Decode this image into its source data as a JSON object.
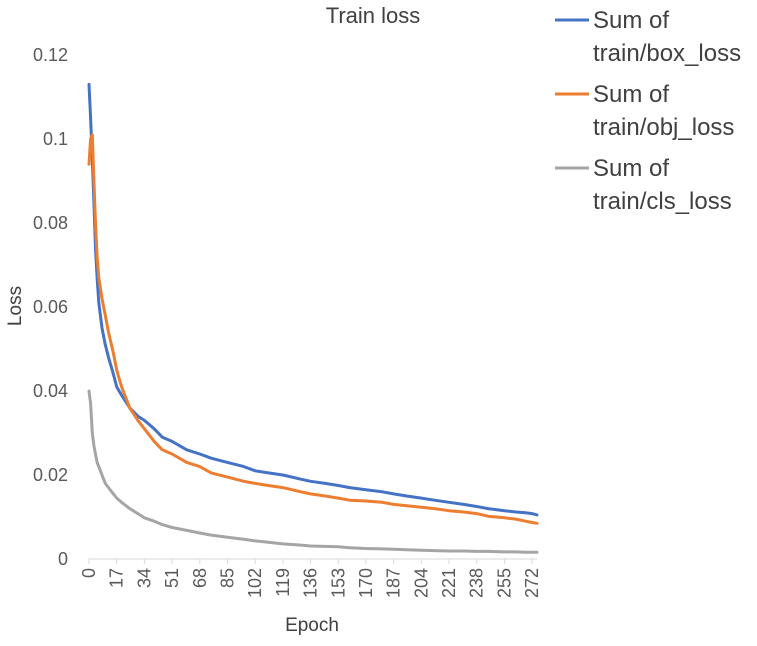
{
  "chart_data": {
    "type": "line",
    "title": "Train loss",
    "xlabel": "Epoch",
    "ylabel": "Loss",
    "ylim": [
      0,
      0.12
    ],
    "y_ticks": [
      "0",
      "0.02",
      "0.04",
      "0.06",
      "0.08",
      "0.1",
      "0.12"
    ],
    "x_range": [
      0,
      275
    ],
    "x_ticks": [
      0,
      17,
      34,
      51,
      68,
      85,
      102,
      119,
      136,
      153,
      170,
      187,
      204,
      221,
      238,
      255,
      272
    ],
    "grid": false,
    "legend_position": "right",
    "series": [
      {
        "name": "Sum of train/box_loss",
        "legend_lines": [
          "Sum of",
          "train/box_loss"
        ],
        "color": "#4472C4",
        "x": [
          0,
          1,
          2,
          3,
          4,
          5,
          6,
          8,
          10,
          12,
          15,
          17,
          20,
          25,
          30,
          34,
          40,
          45,
          51,
          60,
          68,
          75,
          85,
          95,
          102,
          110,
          119,
          130,
          136,
          145,
          153,
          160,
          170,
          180,
          187,
          195,
          204,
          212,
          221,
          230,
          238,
          245,
          255,
          262,
          268,
          272,
          275
        ],
        "y": [
          0.113,
          0.105,
          0.095,
          0.085,
          0.074,
          0.067,
          0.061,
          0.055,
          0.051,
          0.048,
          0.044,
          0.041,
          0.039,
          0.036,
          0.034,
          0.033,
          0.031,
          0.029,
          0.028,
          0.026,
          0.025,
          0.024,
          0.023,
          0.022,
          0.021,
          0.0205,
          0.02,
          0.019,
          0.0185,
          0.018,
          0.0175,
          0.017,
          0.0165,
          0.016,
          0.0155,
          0.015,
          0.0145,
          0.014,
          0.0135,
          0.013,
          0.0125,
          0.012,
          0.0115,
          0.0112,
          0.011,
          0.0108,
          0.0105
        ]
      },
      {
        "name": "Sum of train/obj_loss",
        "legend_lines": [
          "Sum of",
          "train/obj_loss"
        ],
        "color": "#ED7D31",
        "x": [
          0,
          1,
          2,
          3,
          4,
          5,
          6,
          8,
          10,
          12,
          15,
          17,
          20,
          25,
          30,
          34,
          40,
          45,
          51,
          60,
          68,
          75,
          85,
          95,
          102,
          110,
          119,
          130,
          136,
          145,
          153,
          160,
          170,
          180,
          187,
          195,
          204,
          212,
          221,
          230,
          238,
          245,
          255,
          262,
          268,
          272,
          275
        ],
        "y": [
          0.094,
          0.1,
          0.101,
          0.09,
          0.08,
          0.072,
          0.067,
          0.062,
          0.058,
          0.054,
          0.049,
          0.045,
          0.041,
          0.036,
          0.033,
          0.031,
          0.028,
          0.026,
          0.025,
          0.023,
          0.022,
          0.0205,
          0.0195,
          0.0185,
          0.018,
          0.0175,
          0.017,
          0.016,
          0.0155,
          0.015,
          0.0145,
          0.014,
          0.0138,
          0.0135,
          0.013,
          0.0127,
          0.0123,
          0.012,
          0.0115,
          0.0112,
          0.0108,
          0.0102,
          0.0098,
          0.0095,
          0.009,
          0.0087,
          0.0085
        ]
      },
      {
        "name": "Sum of train/cls_loss",
        "legend_lines": [
          "Sum of",
          "train/cls_loss"
        ],
        "color": "#A5A5A5",
        "x": [
          0,
          1,
          2,
          3,
          4,
          5,
          6,
          8,
          10,
          12,
          15,
          17,
          20,
          25,
          30,
          34,
          40,
          45,
          51,
          60,
          68,
          75,
          85,
          95,
          102,
          110,
          119,
          130,
          136,
          145,
          153,
          160,
          170,
          180,
          187,
          195,
          204,
          212,
          221,
          230,
          238,
          245,
          255,
          262,
          268,
          272,
          275
        ],
        "y": [
          0.04,
          0.037,
          0.03,
          0.027,
          0.025,
          0.023,
          0.022,
          0.02,
          0.018,
          0.017,
          0.0155,
          0.0145,
          0.0135,
          0.012,
          0.0108,
          0.0098,
          0.009,
          0.0082,
          0.0075,
          0.0068,
          0.0062,
          0.0057,
          0.0052,
          0.0047,
          0.0043,
          0.004,
          0.0036,
          0.0033,
          0.0031,
          0.003,
          0.0029,
          0.0027,
          0.0025,
          0.0024,
          0.0023,
          0.0022,
          0.0021,
          0.002,
          0.0019,
          0.0019,
          0.0018,
          0.0018,
          0.0017,
          0.0017,
          0.0016,
          0.0016,
          0.0016
        ]
      }
    ]
  }
}
